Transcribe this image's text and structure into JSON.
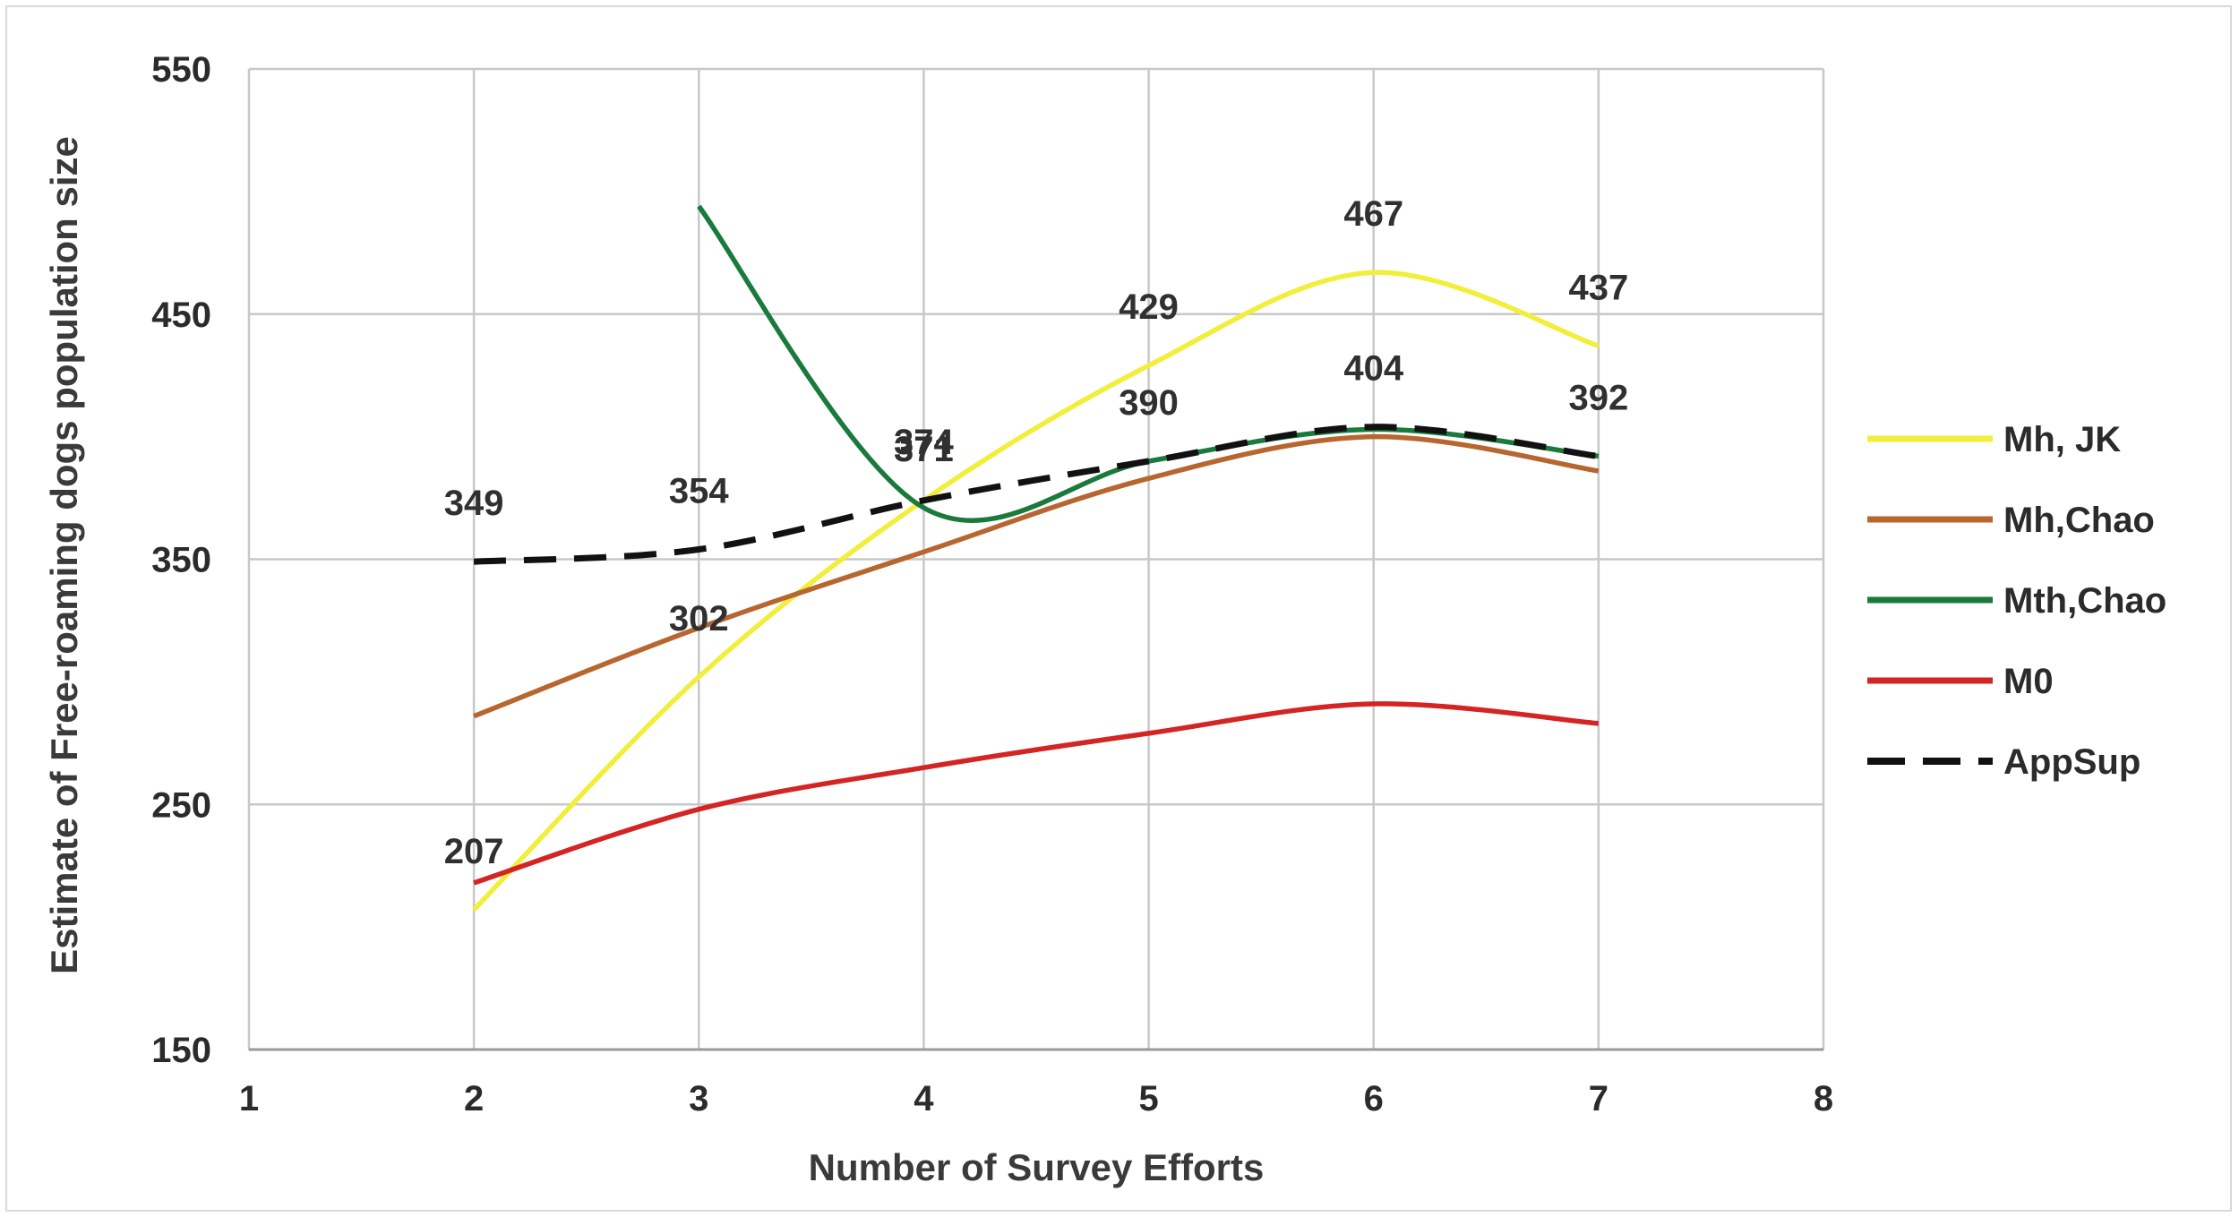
{
  "chart_data": {
    "type": "line",
    "title": "",
    "xlabel": "Number of Survey Efforts",
    "ylabel": "Estimate of Free-roaming dogs population size",
    "xlim": [
      1,
      8
    ],
    "ylim": [
      150,
      550
    ],
    "x_ticks": [
      "1",
      "2",
      "3",
      "4",
      "5",
      "6",
      "7",
      "8"
    ],
    "y_ticks": [
      "150",
      "250",
      "350",
      "450",
      "550"
    ],
    "grid": true,
    "legend_position": "right",
    "series": [
      {
        "name": "Mh, JK",
        "color": "#f2ee3c",
        "dash": false,
        "x": [
          2,
          3,
          4,
          5,
          6,
          7
        ],
        "values": [
          207,
          302,
          374,
          429,
          467,
          437
        ],
        "labels": [
          {
            "x": 5,
            "y": 429,
            "text": "429"
          },
          {
            "x": 6,
            "y": 467,
            "text": "467"
          },
          {
            "x": 7,
            "y": 437,
            "text": "437"
          }
        ]
      },
      {
        "name": "Mh,Chao",
        "color": "#b8662f",
        "dash": false,
        "x": [
          2,
          3,
          4,
          5,
          6,
          7
        ],
        "values": [
          286,
          322,
          353,
          383,
          400,
          386
        ],
        "labels": [
          {
            "x": 3,
            "y": 302,
            "text": "302"
          }
        ]
      },
      {
        "name": "Mth,Chao",
        "color": "#1a7a3c",
        "dash": false,
        "x": [
          3,
          4,
          5,
          6,
          7
        ],
        "values": [
          494,
          371,
          390,
          403,
          392
        ],
        "labels": [
          {
            "x": 4,
            "y": 371,
            "text": "371"
          }
        ]
      },
      {
        "name": "M0",
        "color": "#d42424",
        "dash": false,
        "x": [
          2,
          3,
          4,
          5,
          6,
          7
        ],
        "values": [
          218,
          248,
          265,
          279,
          291,
          283
        ],
        "labels": [
          {
            "x": 2,
            "y": 207,
            "text": "207"
          }
        ]
      },
      {
        "name": "AppSup",
        "color": "#111111",
        "dash": true,
        "x": [
          2,
          3,
          4,
          5,
          6,
          7
        ],
        "values": [
          349,
          354,
          374,
          390,
          404,
          392
        ],
        "labels": [
          {
            "x": 2,
            "y": 349,
            "text": "349"
          },
          {
            "x": 3,
            "y": 354,
            "text": "354"
          },
          {
            "x": 4,
            "y": 374,
            "text": "374"
          },
          {
            "x": 5,
            "y": 390,
            "text": "390"
          },
          {
            "x": 6,
            "y": 404,
            "text": "404"
          },
          {
            "x": 7,
            "y": 392,
            "text": "392"
          }
        ]
      }
    ]
  }
}
